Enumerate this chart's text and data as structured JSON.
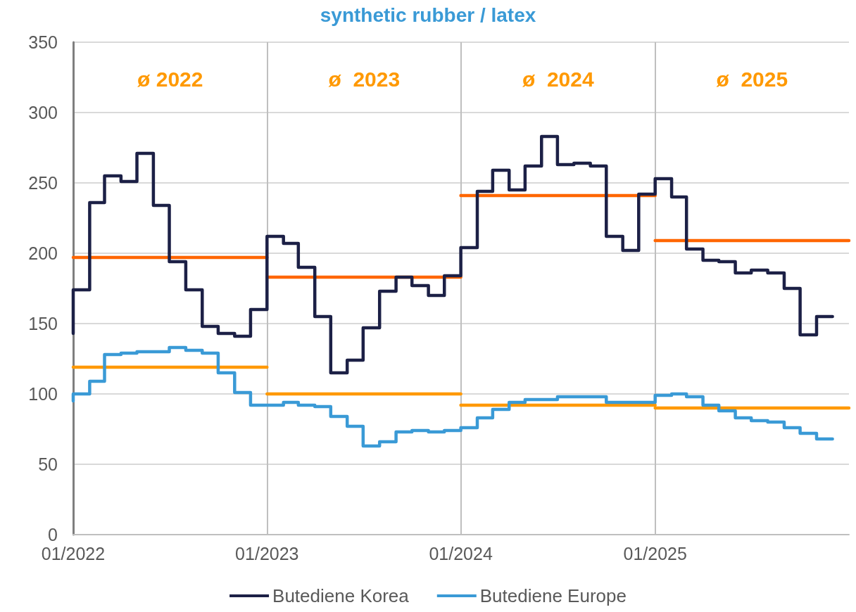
{
  "chart_data": {
    "type": "step",
    "title": "synthetic rubber / latex",
    "x": [
      "2022-01",
      "2022-02",
      "2022-03",
      "2022-04",
      "2022-05",
      "2022-06",
      "2022-07",
      "2022-08",
      "2022-09",
      "2022-10",
      "2022-11",
      "2022-12",
      "2023-01",
      "2023-02",
      "2023-03",
      "2023-04",
      "2023-05",
      "2023-06",
      "2023-07",
      "2023-08",
      "2023-09",
      "2023-10",
      "2023-11",
      "2023-12",
      "2024-01",
      "2024-02",
      "2024-03",
      "2024-04",
      "2024-05",
      "2024-06",
      "2024-07",
      "2024-08",
      "2024-09",
      "2024-10",
      "2024-11",
      "2024-12",
      "2025-01",
      "2025-02",
      "2025-03",
      "2025-04",
      "2025-05",
      "2025-06",
      "2025-07",
      "2025-08",
      "2025-09",
      "2025-10",
      "2025-11",
      "2025-12"
    ],
    "series": [
      {
        "name": "Butediene Korea",
        "color": "#1c2046",
        "values": [
          143,
          174,
          236,
          255,
          251,
          271,
          234,
          194,
          174,
          148,
          143,
          141,
          160,
          212,
          207,
          190,
          155,
          115,
          124,
          147,
          173,
          183,
          177,
          170,
          184,
          204,
          244,
          259,
          245,
          262,
          283,
          263,
          264,
          262,
          212,
          202,
          242,
          253,
          240,
          203,
          195,
          194,
          186,
          188,
          186,
          175,
          142,
          155
        ]
      },
      {
        "name": "Butediene Europe",
        "color": "#3a9ad6",
        "values": [
          95,
          100,
          109,
          128,
          129,
          130,
          130,
          133,
          131,
          129,
          115,
          101,
          92,
          92,
          94,
          92,
          91,
          84,
          77,
          63,
          66,
          73,
          74,
          73,
          74,
          76,
          83,
          89,
          94,
          96,
          96,
          98,
          98,
          98,
          94,
          94,
          94,
          99,
          100,
          98,
          92,
          88,
          83,
          81,
          80,
          76,
          72,
          68
        ]
      },
      {
        "type": "line",
        "color": "#ff6600",
        "x": [
          "2022-01",
          "2023-01"
        ],
        "values": [
          197,
          197
        ]
      },
      {
        "type": "line",
        "color": "#ff6600",
        "x": [
          "2023-01",
          "2024-01"
        ],
        "values": [
          183,
          183
        ]
      },
      {
        "type": "line",
        "color": "#ff6600",
        "x": [
          "2024-01",
          "2025-01"
        ],
        "values": [
          241,
          241
        ]
      },
      {
        "type": "line",
        "color": "#ff6600",
        "x": [
          "2025-01",
          "2026-01"
        ],
        "values": [
          209,
          209
        ]
      },
      {
        "type": "line",
        "color": "#ff9900",
        "x": [
          "2022-01",
          "2023-01"
        ],
        "values": [
          119,
          119
        ]
      },
      {
        "type": "line",
        "color": "#ff9900",
        "x": [
          "2023-01",
          "2024-01"
        ],
        "values": [
          100,
          100
        ]
      },
      {
        "type": "line",
        "color": "#ff9900",
        "x": [
          "2024-01",
          "2025-01"
        ],
        "values": [
          92,
          92
        ]
      },
      {
        "type": "line",
        "color": "#ff9900",
        "x": [
          "2025-01",
          "2026-01"
        ],
        "values": [
          90,
          90
        ]
      }
    ],
    "xlim": [
      "2022-01",
      "2026-01"
    ],
    "xticks": [
      {
        "value": "2022-01",
        "label": "01/2022"
      },
      {
        "value": "2023-01",
        "label": "01/2023"
      },
      {
        "value": "2024-01",
        "label": "01/2024"
      },
      {
        "value": "2025-01",
        "label": "01/2025"
      }
    ],
    "ylim": [
      0,
      350
    ],
    "yticks": [
      0,
      50,
      100,
      150,
      200,
      250,
      300,
      350
    ],
    "annotations": [
      "ø 2022",
      "ø  2023",
      "ø  2024",
      "ø  2025"
    ],
    "grid": true,
    "legend": "bottom",
    "marker": "none",
    "line_style": "solid"
  }
}
